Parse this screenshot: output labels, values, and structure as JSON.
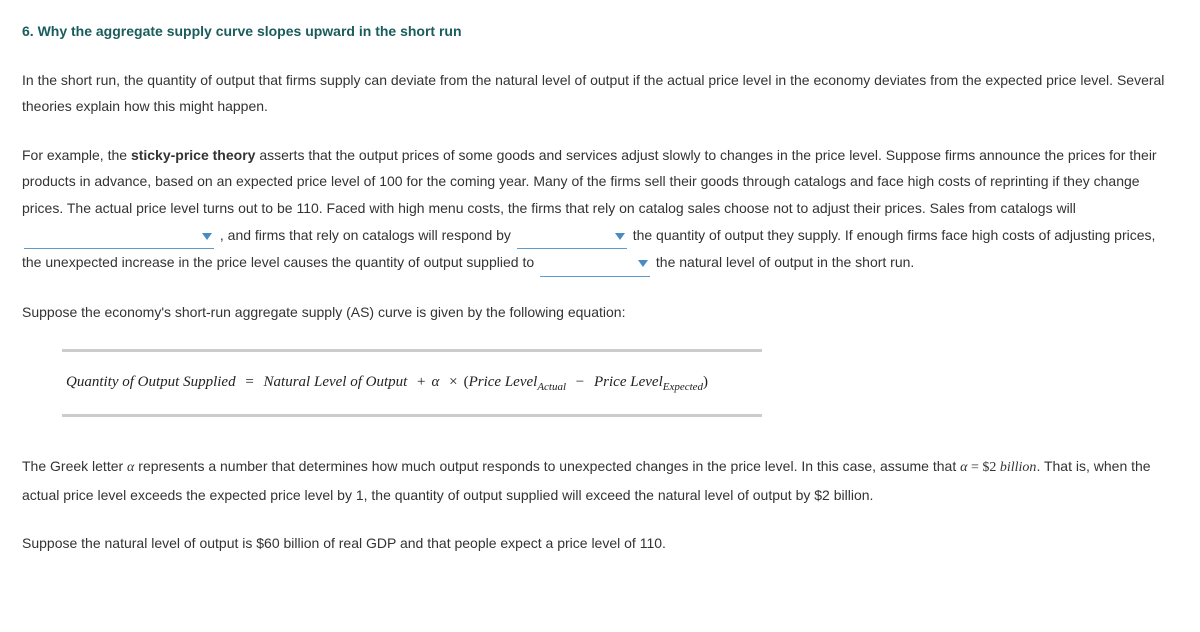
{
  "title": "6. Why the aggregate supply curve slopes upward in the short run",
  "intro": "In the short run, the quantity of output that firms supply can deviate from the natural level of output if the actual price level in the economy deviates from the expected price level. Several theories explain how this might happen.",
  "p2": {
    "a": "For example, the ",
    "bold": "sticky-price theory",
    "b": " asserts that the output prices of some goods and services adjust slowly to changes in the price level. Suppose firms announce the prices for their products in advance, based on an expected price level of 100 for the coming year. Many of the firms sell their goods through catalogs and face high costs of reprinting if they change prices. The actual price level turns out to be 110. Faced with high menu costs, the firms that rely on catalog sales choose not to adjust their prices. Sales from catalogs will ",
    "c": " , and firms that rely on catalogs will respond by ",
    "d": " the quantity of output they supply. If enough firms face high costs of adjusting prices, the unexpected increase in the price level causes the quantity of output supplied to ",
    "e": " the natural level of output in the short run."
  },
  "p3": "Suppose the economy's short-run aggregate supply (AS) curve is given by the following equation:",
  "equation": {
    "lhs": "Quantity of Output Supplied",
    "eq": "=",
    "rhs1": "Natural Level of Output",
    "plus": "+",
    "alpha": "α",
    "times": "×",
    "lparen": "(",
    "pl": "Price Level",
    "sub_actual": "Actual",
    "minus": "−",
    "sub_expected": "Expected",
    "rparen": ")"
  },
  "p4": {
    "a": "The Greek letter ",
    "alpha1": "α",
    "b": " represents a number that determines how much output responds to unexpected changes in the price level. In this case, assume that ",
    "alpha2": "α",
    "eq": " = ",
    "val": "$2 ",
    "billion": "billion",
    "c": ". That is, when the actual price level exceeds the expected price level by 1, the quantity of output supplied will exceed the natural level of output by $2 billion."
  },
  "p5": "Suppose the natural level of output is $60 billion of real GDP and that people expect a price level of 110.",
  "dropdowns": {
    "dd1": "",
    "dd2": "",
    "dd3": ""
  }
}
